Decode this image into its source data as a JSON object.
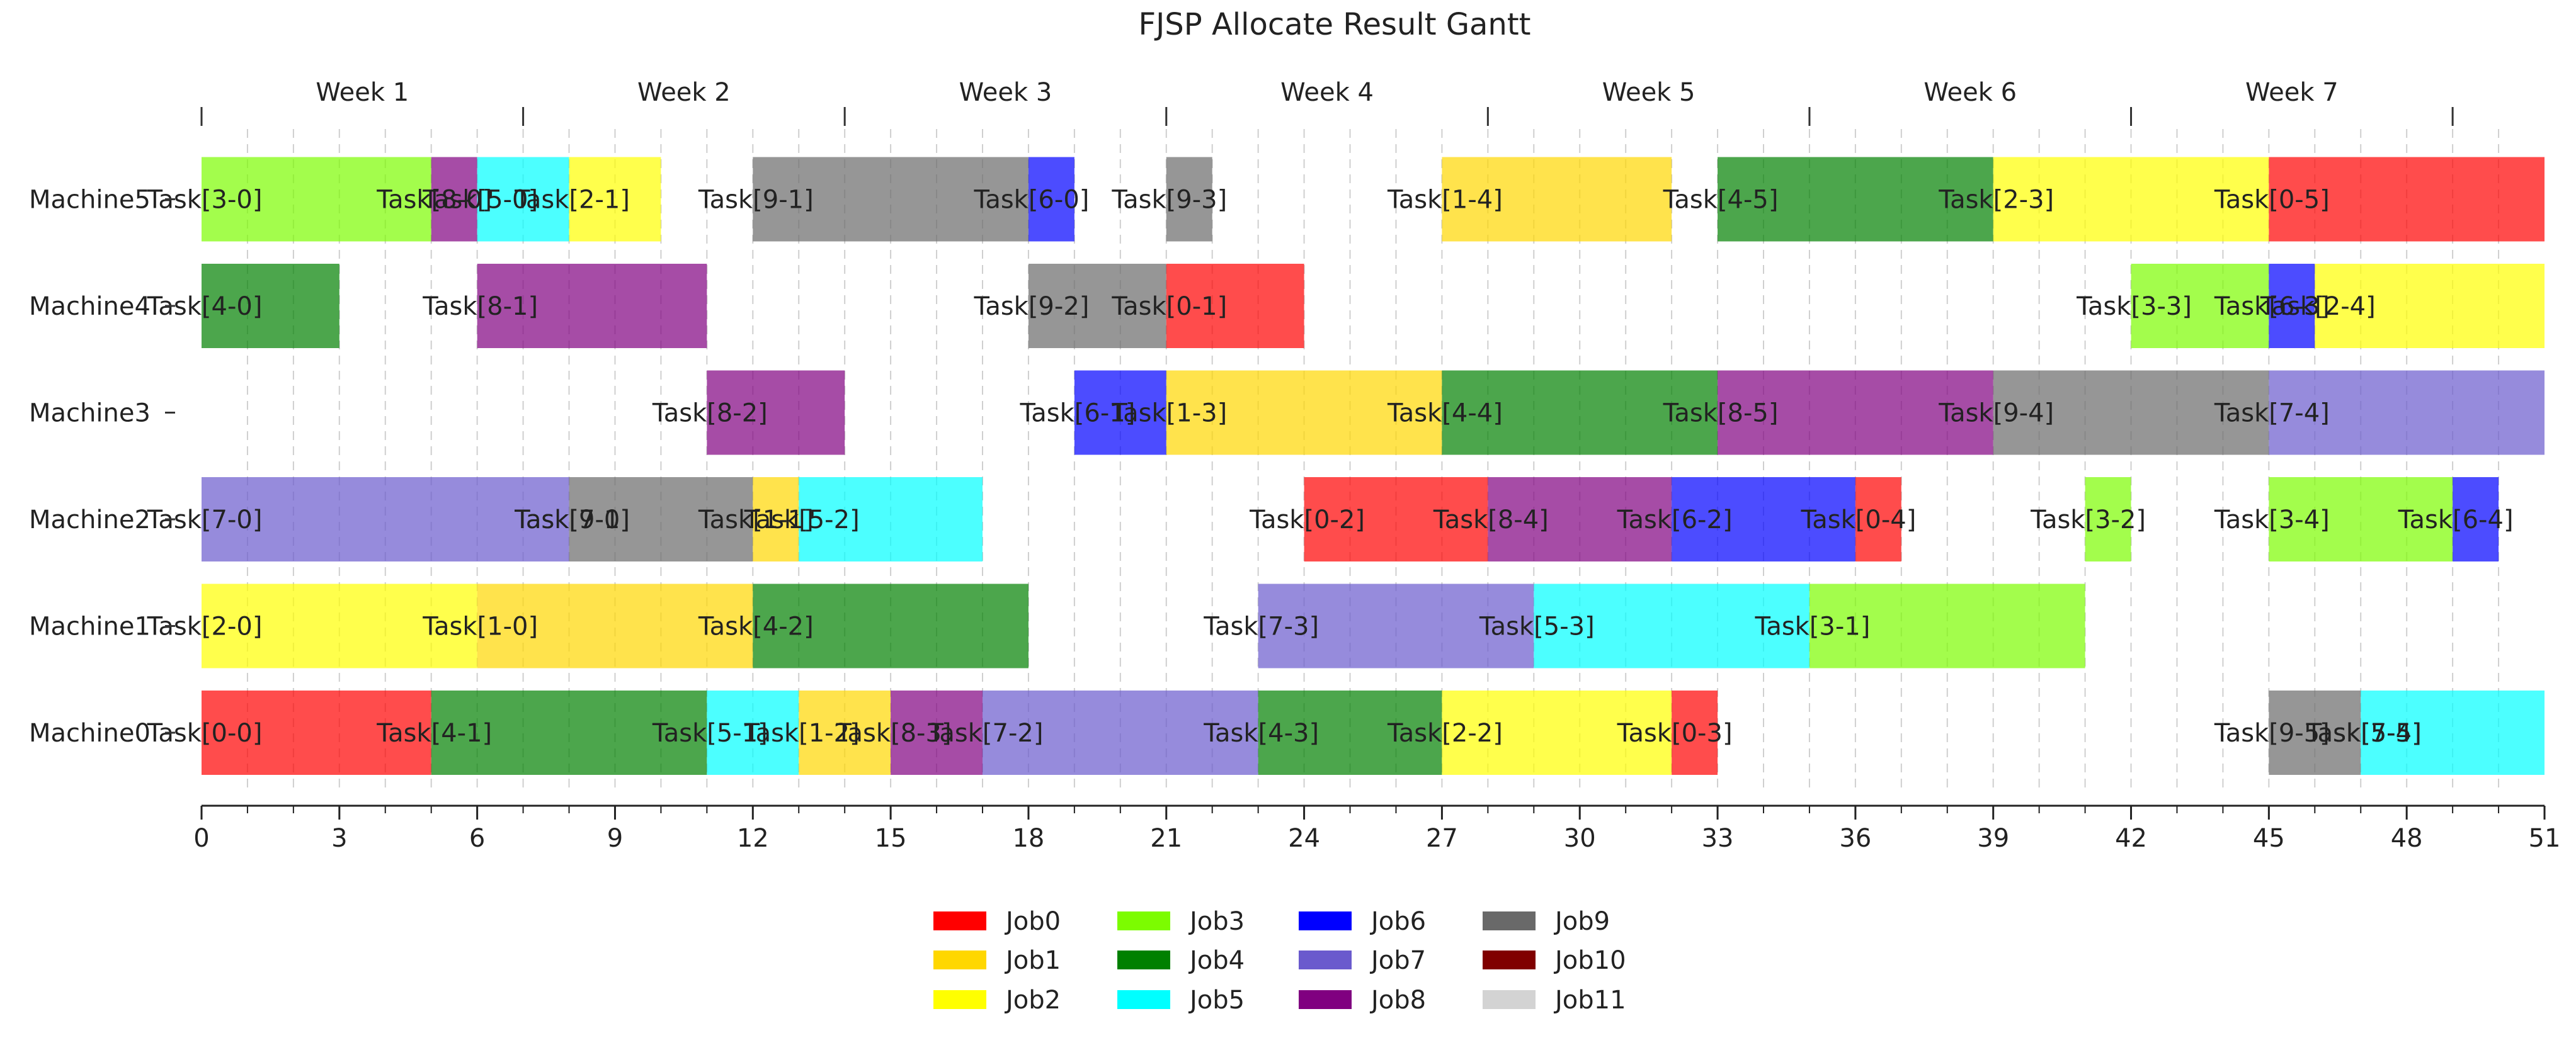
{
  "chart_data": {
    "type": "gantt",
    "title": "FJSP Allocate Result Gantt",
    "xlim": [
      0,
      51
    ],
    "x_ticks": [
      0,
      3,
      6,
      9,
      12,
      15,
      18,
      21,
      24,
      27,
      30,
      33,
      36,
      39,
      42,
      45,
      48,
      51
    ],
    "grid": "vertical dashed, every 1 unit",
    "weeks": [
      {
        "label": "Week 1",
        "start": 0,
        "end": 7
      },
      {
        "label": "Week 2",
        "start": 7,
        "end": 14
      },
      {
        "label": "Week 3",
        "start": 14,
        "end": 21
      },
      {
        "label": "Week 4",
        "start": 21,
        "end": 28
      },
      {
        "label": "Week 5",
        "start": 28,
        "end": 35
      },
      {
        "label": "Week 6",
        "start": 35,
        "end": 42
      },
      {
        "label": "Week 7",
        "start": 42,
        "end": 49
      }
    ],
    "machines": [
      "Machine0",
      "Machine1",
      "Machine2",
      "Machine3",
      "Machine4",
      "Machine5"
    ],
    "legend": {
      "placement": "bottom-center",
      "entries": [
        {
          "name": "Job0",
          "color": "#ff0000"
        },
        {
          "name": "Job1",
          "color": "#ffd700"
        },
        {
          "name": "Job2",
          "color": "#ffff00"
        },
        {
          "name": "Job3",
          "color": "#7cfc00"
        },
        {
          "name": "Job4",
          "color": "#008000"
        },
        {
          "name": "Job5",
          "color": "#00ffff"
        },
        {
          "name": "Job6",
          "color": "#0000ff"
        },
        {
          "name": "Job7",
          "color": "#6a5acd"
        },
        {
          "name": "Job8",
          "color": "#800080"
        },
        {
          "name": "Job9",
          "color": "#696969"
        },
        {
          "name": "Job10",
          "color": "#800000"
        },
        {
          "name": "Job11",
          "color": "#d3d3d3"
        }
      ]
    },
    "tasks": [
      {
        "machine": 0,
        "job": 0,
        "label": "Task[0-0]",
        "start": 0,
        "end": 5
      },
      {
        "machine": 0,
        "job": 4,
        "label": "Task[4-1]",
        "start": 5,
        "end": 11
      },
      {
        "machine": 0,
        "job": 5,
        "label": "Task[5-1]",
        "start": 11,
        "end": 13
      },
      {
        "machine": 0,
        "job": 1,
        "label": "Task[1-2]",
        "start": 13,
        "end": 15
      },
      {
        "machine": 0,
        "job": 8,
        "label": "Task[8-3]",
        "start": 15,
        "end": 17
      },
      {
        "machine": 0,
        "job": 7,
        "label": "Task[7-2]",
        "start": 17,
        "end": 23
      },
      {
        "machine": 0,
        "job": 4,
        "label": "Task[4-3]",
        "start": 23,
        "end": 27
      },
      {
        "machine": 0,
        "job": 2,
        "label": "Task[2-2]",
        "start": 27,
        "end": 32
      },
      {
        "machine": 0,
        "job": 0,
        "label": "Task[0-3]",
        "start": 32,
        "end": 33
      },
      {
        "machine": 0,
        "job": 9,
        "label": "Task[9-5]",
        "start": 45,
        "end": 47
      },
      {
        "machine": 0,
        "job": 7,
        "label": "Task[7-5]",
        "start": 47,
        "end": 47
      },
      {
        "machine": 0,
        "job": 5,
        "label": "Task[5-4]",
        "start": 47,
        "end": 47
      },
      {
        "machine": 0,
        "job": 5,
        "label": "Task[5-5]",
        "start": 47,
        "end": 51
      },
      {
        "machine": 1,
        "job": 2,
        "label": "Task[2-0]",
        "start": 0,
        "end": 6
      },
      {
        "machine": 1,
        "job": 1,
        "label": "Task[1-0]",
        "start": 6,
        "end": 12
      },
      {
        "machine": 1,
        "job": 4,
        "label": "Task[4-2]",
        "start": 12,
        "end": 18
      },
      {
        "machine": 1,
        "job": 7,
        "label": "Task[7-3]",
        "start": 23,
        "end": 29
      },
      {
        "machine": 1,
        "job": 5,
        "label": "Task[5-3]",
        "start": 29,
        "end": 35
      },
      {
        "machine": 1,
        "job": 3,
        "label": "Task[3-1]",
        "start": 35,
        "end": 41
      },
      {
        "machine": 2,
        "job": 7,
        "label": "Task[7-0]",
        "start": 0,
        "end": 8
      },
      {
        "machine": 2,
        "job": 7,
        "label": "Task[7-1]",
        "start": 8,
        "end": 8
      },
      {
        "machine": 2,
        "job": 9,
        "label": "Task[9-0]",
        "start": 8,
        "end": 12
      },
      {
        "machine": 2,
        "job": 1,
        "label": "Task[1-1]",
        "start": 12,
        "end": 13
      },
      {
        "machine": 2,
        "job": 5,
        "label": "Task[5-2]",
        "start": 13,
        "end": 17
      },
      {
        "machine": 2,
        "job": 0,
        "label": "Task[0-2]",
        "start": 24,
        "end": 28
      },
      {
        "machine": 2,
        "job": 8,
        "label": "Task[8-4]",
        "start": 28,
        "end": 32
      },
      {
        "machine": 2,
        "job": 6,
        "label": "Task[6-2]",
        "start": 32,
        "end": 36
      },
      {
        "machine": 2,
        "job": 0,
        "label": "Task[0-4]",
        "start": 36,
        "end": 37
      },
      {
        "machine": 2,
        "job": 3,
        "label": "Task[3-2]",
        "start": 41,
        "end": 42
      },
      {
        "machine": 2,
        "job": 3,
        "label": "Task[3-4]",
        "start": 45,
        "end": 49
      },
      {
        "machine": 2,
        "job": 6,
        "label": "Task[6-4]",
        "start": 49,
        "end": 50
      },
      {
        "machine": 3,
        "job": 8,
        "label": "Task[8-2]",
        "start": 11,
        "end": 14
      },
      {
        "machine": 3,
        "job": 6,
        "label": "Task[6-1]",
        "start": 19,
        "end": 21
      },
      {
        "machine": 3,
        "job": 1,
        "label": "Task[1-3]",
        "start": 21,
        "end": 27
      },
      {
        "machine": 3,
        "job": 4,
        "label": "Task[4-4]",
        "start": 27,
        "end": 33
      },
      {
        "machine": 3,
        "job": 8,
        "label": "Task[8-5]",
        "start": 33,
        "end": 39
      },
      {
        "machine": 3,
        "job": 9,
        "label": "Task[9-4]",
        "start": 39,
        "end": 45
      },
      {
        "machine": 3,
        "job": 7,
        "label": "Task[7-4]",
        "start": 45,
        "end": 51
      },
      {
        "machine": 4,
        "job": 4,
        "label": "Task[4-0]",
        "start": 0,
        "end": 3
      },
      {
        "machine": 4,
        "job": 8,
        "label": "Task[8-1]",
        "start": 6,
        "end": 11
      },
      {
        "machine": 4,
        "job": 9,
        "label": "Task[9-2]",
        "start": 18,
        "end": 21
      },
      {
        "machine": 4,
        "job": 0,
        "label": "Task[0-1]",
        "start": 21,
        "end": 24
      },
      {
        "machine": 4,
        "job": 3,
        "label": "Task[3-3]",
        "start": 42,
        "end": 45
      },
      {
        "machine": 4,
        "job": 6,
        "label": "Task[6-3]",
        "start": 45,
        "end": 46
      },
      {
        "machine": 4,
        "job": 2,
        "label": "Task[2-4]",
        "start": 46,
        "end": 51
      },
      {
        "machine": 5,
        "job": 3,
        "label": "Task[3-0]",
        "start": 0,
        "end": 5
      },
      {
        "machine": 5,
        "job": 8,
        "label": "Task[8-0]",
        "start": 5,
        "end": 6
      },
      {
        "machine": 5,
        "job": 5,
        "label": "Task[5-0]",
        "start": 6,
        "end": 8
      },
      {
        "machine": 5,
        "job": 2,
        "label": "Task[2-1]",
        "start": 8,
        "end": 10
      },
      {
        "machine": 5,
        "job": 9,
        "label": "Task[9-1]",
        "start": 12,
        "end": 18
      },
      {
        "machine": 5,
        "job": 6,
        "label": "Task[6-0]",
        "start": 18,
        "end": 19
      },
      {
        "machine": 5,
        "job": 9,
        "label": "Task[9-3]",
        "start": 21,
        "end": 22
      },
      {
        "machine": 5,
        "job": 1,
        "label": "Task[1-4]",
        "start": 27,
        "end": 32
      },
      {
        "machine": 5,
        "job": 4,
        "label": "Task[4-5]",
        "start": 33,
        "end": 39
      },
      {
        "machine": 5,
        "job": 2,
        "label": "Task[2-3]",
        "start": 39,
        "end": 45
      },
      {
        "machine": 5,
        "job": 0,
        "label": "Task[0-5]",
        "start": 45,
        "end": 51
      }
    ]
  }
}
